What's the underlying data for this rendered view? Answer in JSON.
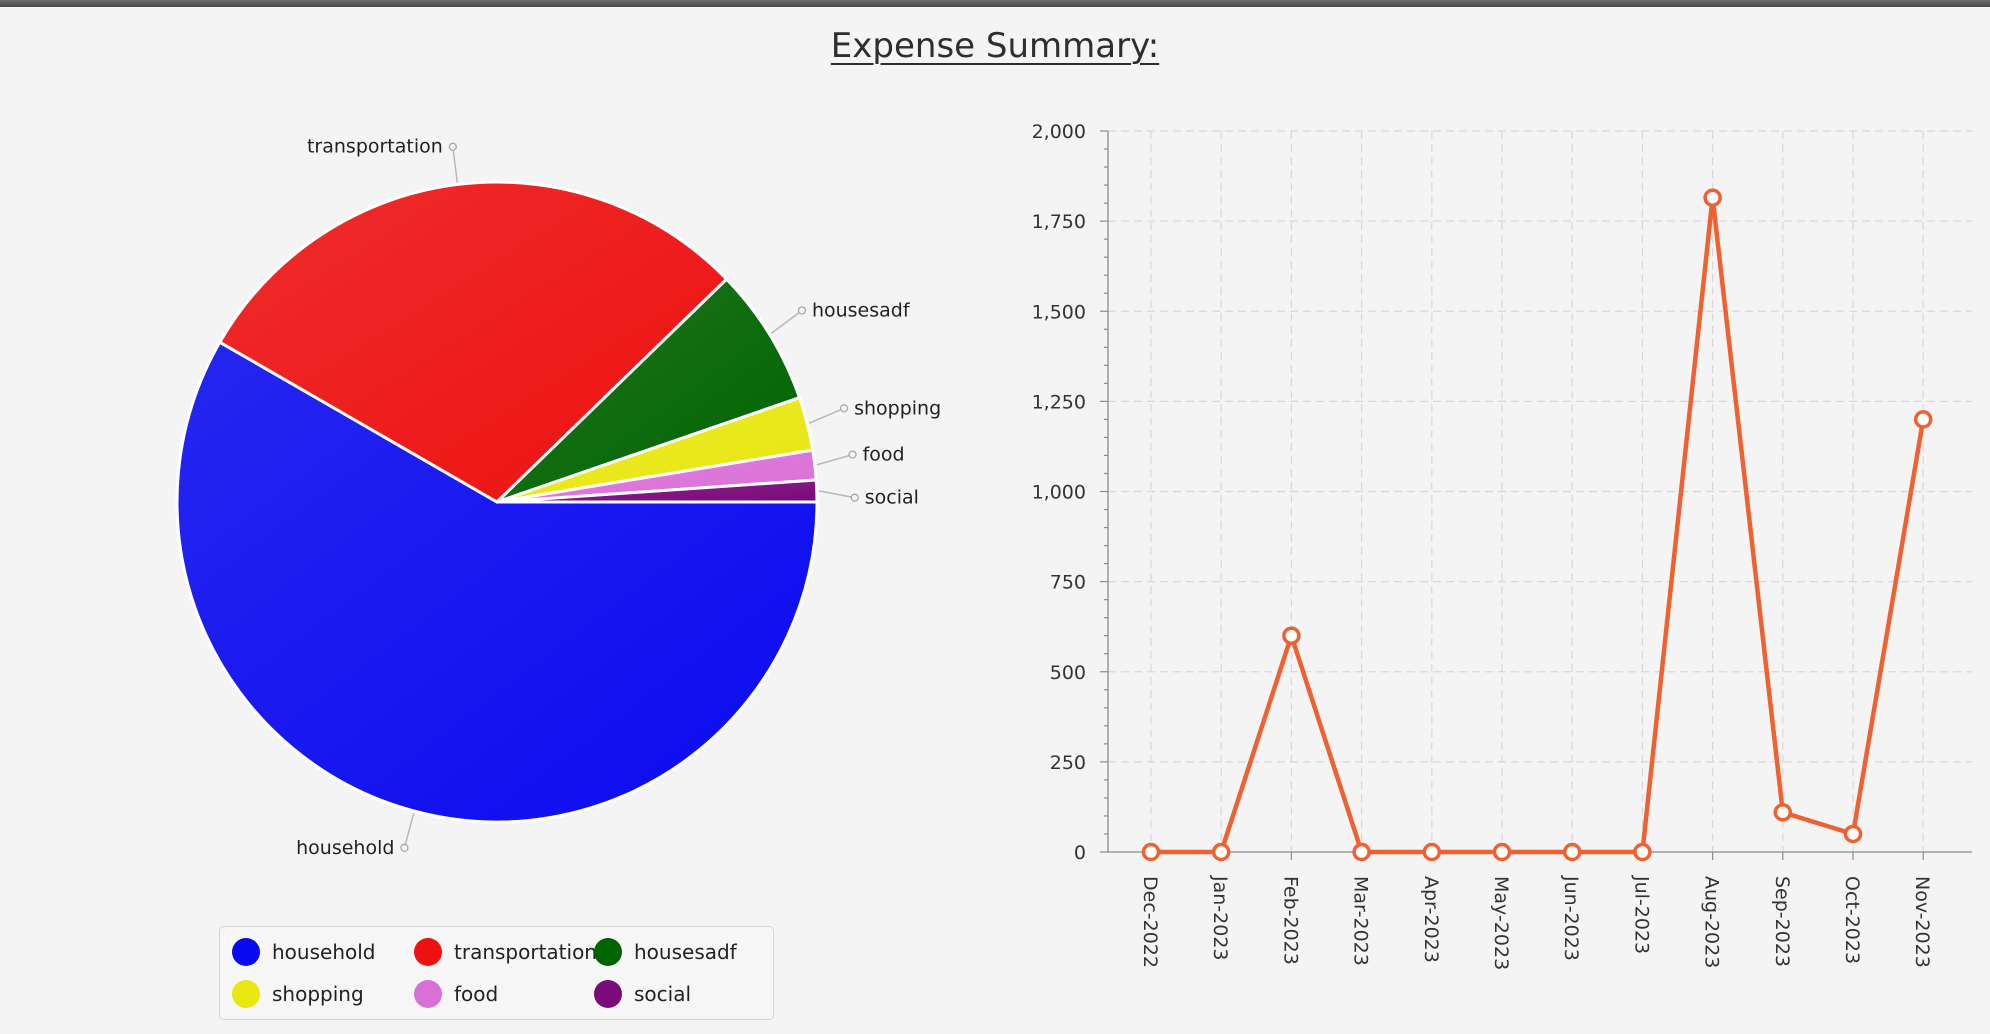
{
  "page": {
    "title": "Expense Summary:"
  },
  "colors": {
    "household": "#0a0af0",
    "transportation": "#ee1111",
    "housesadf": "#006400",
    "shopping": "#e8e810",
    "food": "#da70d6",
    "social": "#7a0a7a",
    "line": "#ef6130"
  },
  "chart_data": [
    {
      "type": "pie",
      "categories": [
        "household",
        "transportation",
        "housesadf",
        "shopping",
        "food",
        "social"
      ],
      "values": [
        58.5,
        29.5,
        7.0,
        2.7,
        1.5,
        1.1
      ],
      "legend": {
        "position": "bottom",
        "items": [
          "household",
          "transportation",
          "housesadf",
          "shopping",
          "food",
          "social"
        ]
      }
    },
    {
      "type": "line",
      "x": [
        "Dec-2022",
        "Jan-2023",
        "Feb-2023",
        "Mar-2023",
        "Apr-2023",
        "May-2023",
        "Jun-2023",
        "Jul-2023",
        "Aug-2023",
        "Sep-2023",
        "Oct-2023",
        "Nov-2023"
      ],
      "series": [
        {
          "values": [
            0,
            0,
            600,
            0,
            0,
            0,
            0,
            0,
            1815,
            110,
            50,
            1200
          ]
        }
      ],
      "ylim": [
        0,
        2000
      ],
      "yticks": [
        "0",
        "250",
        "500",
        "750",
        "1,000",
        "1,250",
        "1,500",
        "1,750",
        "2,000"
      ],
      "grid": true
    }
  ]
}
